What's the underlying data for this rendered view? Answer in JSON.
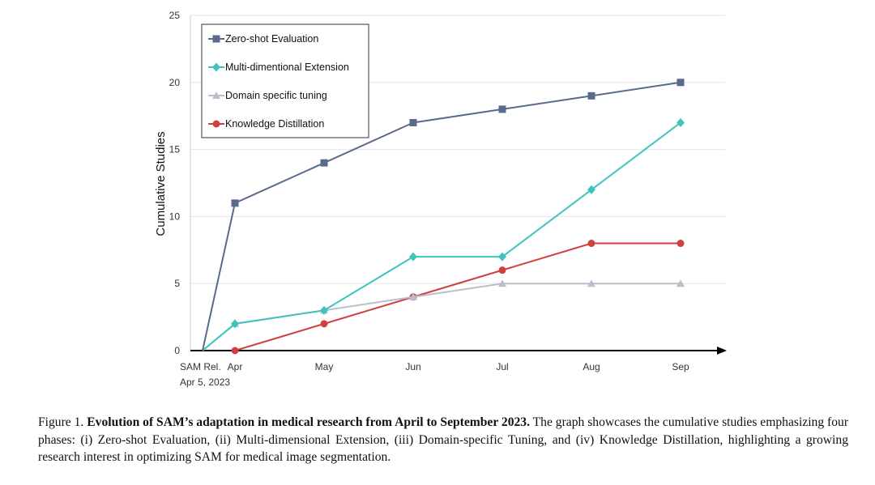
{
  "chart_data": {
    "type": "line",
    "x_start_label": [
      "SAM Rel.",
      "Apr 5, 2023"
    ],
    "categories": [
      "SAM Rel.",
      "Apr",
      "May",
      "Jun",
      "Jul",
      "Aug",
      "Sep"
    ],
    "ylabel": "Cumulative Studies",
    "ylim": [
      0,
      25
    ],
    "yticks": [
      0,
      5,
      10,
      15,
      20,
      25
    ],
    "grid": true,
    "legend_position": "top-left",
    "series": [
      {
        "name": "Zero-shot Evaluation",
        "color": "#5a6a8c",
        "marker": "square",
        "values": [
          0,
          11,
          14,
          17,
          18,
          19,
          20
        ]
      },
      {
        "name": "Multi-dimentional Extension",
        "color": "#3fc4bd",
        "marker": "diamond",
        "values": [
          0,
          2,
          3,
          7,
          7,
          12,
          17
        ]
      },
      {
        "name": "Domain specific tuning",
        "color": "#b8c0cc",
        "marker": "triangle",
        "values": [
          0,
          2,
          3,
          4,
          5,
          5,
          5
        ]
      },
      {
        "name": "Knowledge Distillation",
        "color": "#d0403c",
        "marker": "circle",
        "values": [
          null,
          0,
          2,
          4,
          6,
          8,
          8
        ]
      }
    ]
  },
  "caption": {
    "prefix": "Figure 1.",
    "title": "Evolution of SAM’s adaptation in medical research from April to September 2023.",
    "body": "The graph showcases the cumulative studies emphasizing four phases: (i) Zero-shot Evaluation, (ii) Multi-dimensional Extension, (iii) Domain-specific Tuning, and (iv) Knowledge Distillation, highlighting a growing research interest in optimizing SAM for medical image segmentation."
  }
}
